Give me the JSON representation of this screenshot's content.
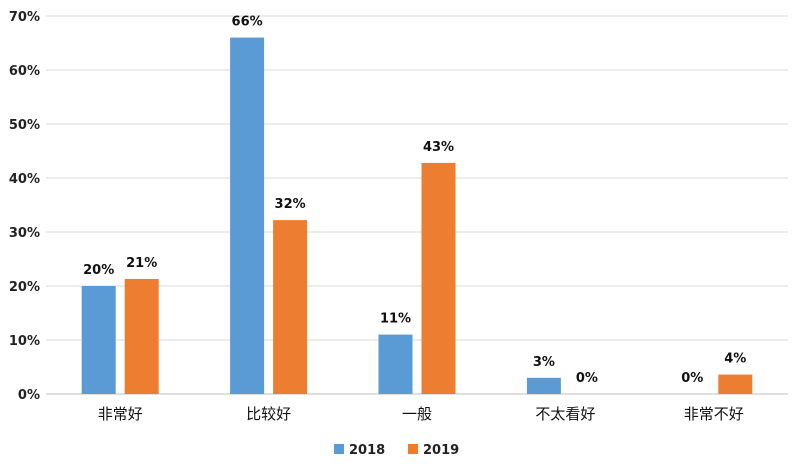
{
  "chart_data": {
    "type": "bar",
    "categories": [
      "非常好",
      "比较好",
      "一般",
      "不太看好",
      "非常不好"
    ],
    "series": [
      {
        "name": "2018",
        "color": "#5b9bd5",
        "values": [
          20,
          66,
          11,
          3,
          0
        ],
        "labels": [
          "20%",
          "66%",
          "11%",
          "3%",
          "0%"
        ]
      },
      {
        "name": "2019",
        "color": "#ed7d31",
        "values": [
          21.3,
          32.2,
          42.8,
          0,
          3.6
        ],
        "labels": [
          "21%",
          "32%",
          "43%",
          "0%",
          "4%"
        ]
      }
    ],
    "ylim": [
      0,
      70
    ],
    "yticks": [
      "0%",
      "10%",
      "20%",
      "30%",
      "40%",
      "50%",
      "60%",
      "70%"
    ],
    "grid": true,
    "legend_position": "bottom"
  }
}
